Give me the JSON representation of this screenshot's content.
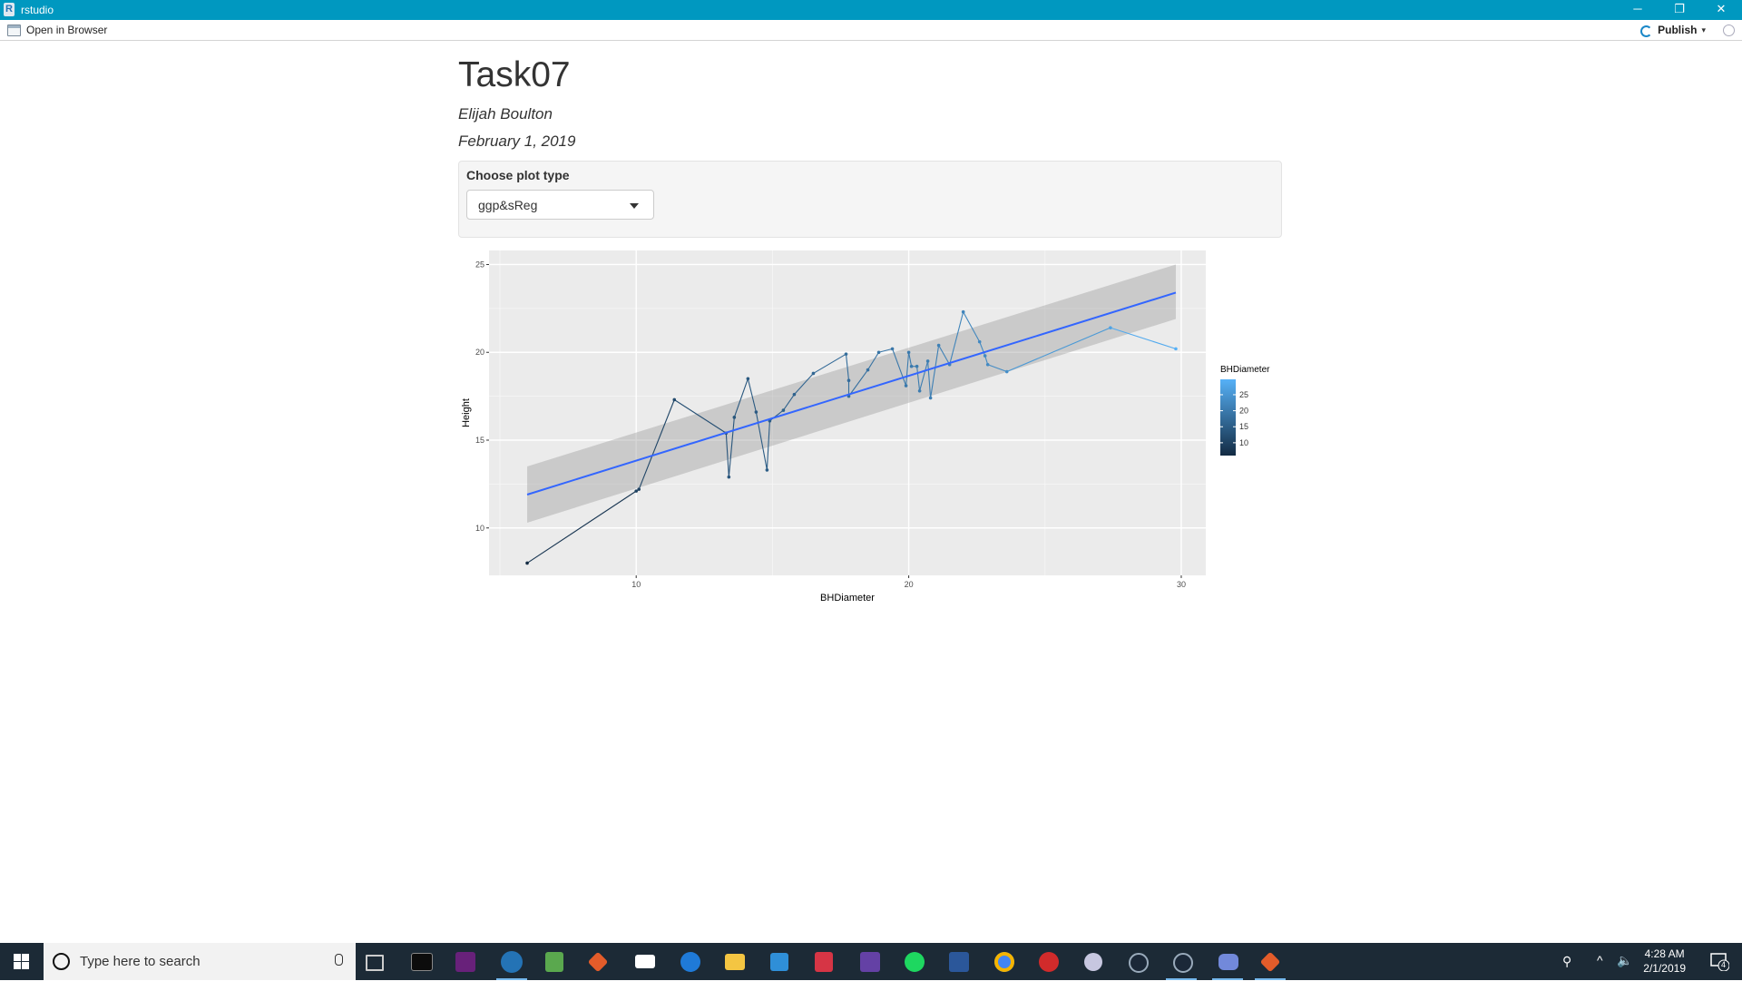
{
  "window": {
    "title": "rstudio",
    "minimize": "─",
    "restore": "❐",
    "close": "✕"
  },
  "toolbar": {
    "open_in_browser": "Open in Browser",
    "publish": "Publish"
  },
  "document": {
    "title": "Task07",
    "author": "Elijah Boulton",
    "date": "February 1, 2019"
  },
  "control": {
    "label": "Choose plot type",
    "selected": "ggp&sReg"
  },
  "chart_data": {
    "type": "line",
    "xlabel": "BHDiameter",
    "ylabel": "Height",
    "xlim": [
      4.6,
      30.9
    ],
    "ylim": [
      7.3,
      25.8
    ],
    "xticks": [
      10,
      20,
      30
    ],
    "yticks": [
      10,
      15,
      20,
      25
    ],
    "grid": true,
    "legend": {
      "title": "BHDiameter",
      "position": "right",
      "ticks": [
        25,
        20,
        15,
        10
      ],
      "colorscale": [
        "#132b43",
        "#56b1f7"
      ]
    },
    "series": [
      {
        "x": [
          6,
          10,
          10.1,
          11.4,
          13.3,
          13.4,
          13.6,
          14.1,
          14.4,
          14.8,
          14.9,
          15.4,
          15.8,
          16.5,
          17.7,
          17.8,
          17.8,
          18.5,
          18.9,
          19.4,
          19.9,
          20,
          20.1,
          20.3,
          20.4,
          20.7,
          20.8,
          21.1,
          21.5,
          22,
          22.6,
          22.8,
          22.9,
          23.6,
          27.4,
          29.8
        ],
        "y": [
          8,
          12.1,
          12.2,
          17.3,
          15.4,
          12.9,
          16.3,
          18.5,
          16.6,
          13.3,
          16.1,
          16.7,
          17.6,
          18.8,
          19.9,
          18.4,
          17.5,
          19.0,
          20.0,
          20.2,
          18.1,
          20.0,
          19.2,
          19.2,
          17.8,
          19.5,
          17.4,
          20.4,
          19.3,
          22.3,
          20.6,
          19.8,
          19.3,
          18.9,
          21.4,
          20.2
        ]
      }
    ],
    "regression": {
      "x": [
        6,
        29.8
      ],
      "y": [
        11.9,
        23.4
      ],
      "se_lower": [
        10.3,
        21.9
      ],
      "se_upper": [
        13.5,
        25.0
      ],
      "color": "#3366ff"
    }
  },
  "taskbar": {
    "search_placeholder": "Type here to search",
    "time": "4:28 AM",
    "date": "2/1/2019",
    "notifications": "4"
  }
}
